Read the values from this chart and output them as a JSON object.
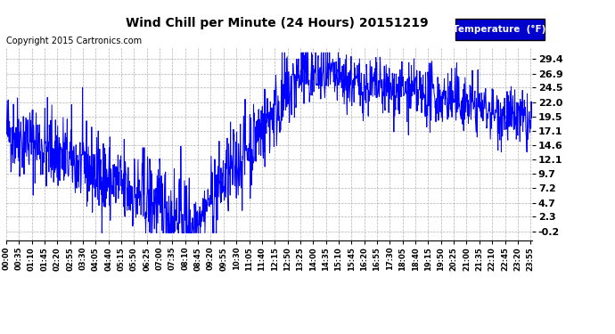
{
  "title": "Wind Chill per Minute (24 Hours) 20151219",
  "copyright": "Copyright 2015 Cartronics.com",
  "legend_label": "Temperature  (°F)",
  "line_color": "#0000ff",
  "background_color": "#ffffff",
  "grid_color": "#b0b0b0",
  "yticks": [
    -0.2,
    2.3,
    4.7,
    7.2,
    9.7,
    12.1,
    14.6,
    17.1,
    19.5,
    22.0,
    24.5,
    26.9,
    29.4
  ],
  "ylim": [
    -1.8,
    31.5
  ],
  "total_minutes": 1440,
  "legend_bg": "#0000cc",
  "legend_text_color": "#ffffff",
  "xtick_every": 35
}
